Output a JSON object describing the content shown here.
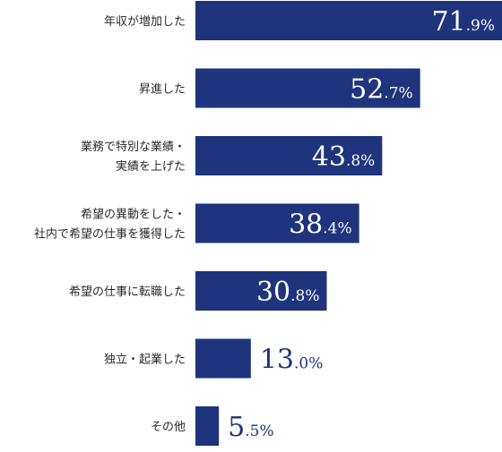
{
  "chart_data": {
    "type": "bar",
    "orientation": "horizontal",
    "categories": [
      [
        "年収が増加した"
      ],
      [
        "昇進した"
      ],
      [
        "業務で特別な業績・",
        "実績を上げた"
      ],
      [
        "希望の異動をした・",
        "社内で希望の仕事を獲得した"
      ],
      [
        "希望の仕事に転職した"
      ],
      [
        "独立・起業した"
      ],
      [
        "その他"
      ]
    ],
    "values": [
      71.9,
      52.7,
      43.8,
      38.4,
      30.8,
      13.0,
      5.5
    ],
    "value_labels": [
      {
        "int": "71",
        "dec": ".9%"
      },
      {
        "int": "52",
        "dec": ".7%"
      },
      {
        "int": "43",
        "dec": ".8%"
      },
      {
        "int": "38",
        "dec": ".4%"
      },
      {
        "int": "30",
        "dec": ".8%"
      },
      {
        "int": "13",
        "dec": ".0%"
      },
      {
        "int": "5",
        "dec": ".5%"
      }
    ],
    "xlim": [
      0,
      71.9
    ],
    "grid": false,
    "legend": "none",
    "colors": {
      "bar": "#1e347c",
      "label_inside": "#ffffff",
      "label_outside": "#1e347c"
    }
  }
}
